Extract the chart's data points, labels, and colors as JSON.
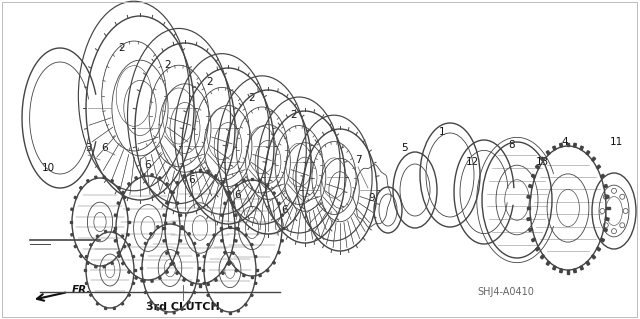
{
  "bg_color": "#ffffff",
  "label_color": "#111111",
  "diagram_color": "#444444",
  "label_3rd_clutch": "3rd CLUTCH",
  "label_fr": "FR.",
  "label_shj4": "SHJ4-A0410",
  "figsize": [
    6.4,
    3.19
  ],
  "dpi": 100
}
